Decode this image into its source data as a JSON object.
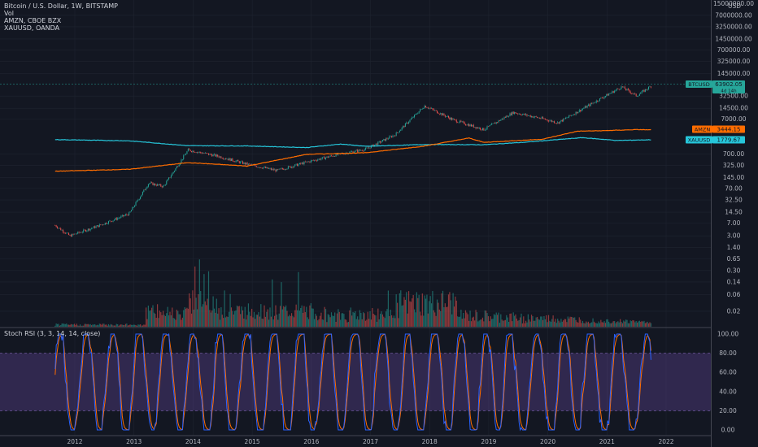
{
  "legend": {
    "main": "Bitcoin / U.S. Dollar, 1W, BITSTAMP",
    "volume": "Vol",
    "compare1": "AMZN, CBOE BZX",
    "compare2": "XAUUSD, OANDA"
  },
  "price_axis": {
    "currency": "USD",
    "labels": [
      "15000000.00",
      "7000000.00",
      "3250000.00",
      "1450000.00",
      "700000.00",
      "325000.00",
      "145000.00",
      "32500.00",
      "14500.00",
      "7000.00",
      "700.00",
      "325.00",
      "145.00",
      "70.00",
      "32.50",
      "14.50",
      "7.00",
      "3.00",
      "1.40",
      "0.65",
      "0.30",
      "0.14",
      "0.06",
      "0.02"
    ]
  },
  "badges": {
    "btc": {
      "name": "BTCUSD",
      "value": "63902.05",
      "sub": "4d 14h",
      "color": "#26a69a"
    },
    "amzn": {
      "name": "AMZN",
      "value": "3444.15",
      "color": "#ff6d00"
    },
    "xau": {
      "name": "XAUUSD",
      "value": "1779.67",
      "color": "#26c6da"
    }
  },
  "rsi": {
    "title": "Stoch RSI (3, 3, 14, 14, close)",
    "labels": [
      "100.00",
      "80.00",
      "60.00",
      "40.00",
      "20.00",
      "0.00"
    ],
    "k_color": "#2962ff",
    "d_color": "#ff6d00",
    "band_color": "#7e57c2"
  },
  "time_axis": {
    "labels": [
      "2012",
      "2013",
      "2014",
      "2015",
      "2016",
      "2017",
      "2018",
      "2019",
      "2020",
      "2021",
      "2022"
    ]
  },
  "chart_data": {
    "type": "line",
    "series": [
      {
        "name": "BTCUSD",
        "unit": "USD",
        "color": "#26a69a",
        "x": [
          "2011-09",
          "2011-12",
          "2012-06",
          "2012-12",
          "2013-04",
          "2013-07",
          "2013-12",
          "2014-06",
          "2014-12",
          "2015-06",
          "2015-12",
          "2016-06",
          "2016-12",
          "2017-06",
          "2017-12",
          "2018-06",
          "2018-12",
          "2019-06",
          "2019-12",
          "2020-03",
          "2020-06",
          "2020-12",
          "2021-04",
          "2021-07",
          "2021-10"
        ],
        "y": [
          6,
          3,
          6,
          13,
          100,
          80,
          900,
          600,
          350,
          230,
          400,
          650,
          950,
          2500,
          17000,
          6500,
          3500,
          11000,
          7200,
          5500,
          9500,
          29000,
          60000,
          33000,
          63902
        ]
      },
      {
        "name": "AMZN",
        "unit": "USD",
        "color": "#ff6d00",
        "x": [
          "2011-09",
          "2012-12",
          "2013-12",
          "2014-12",
          "2015-12",
          "2016-12",
          "2017-12",
          "2018-09",
          "2018-12",
          "2019-12",
          "2020-07",
          "2020-12",
          "2021-07",
          "2021-10"
        ],
        "y": [
          220,
          250,
          390,
          310,
          675,
          750,
          1170,
          2000,
          1500,
          1850,
          3150,
          3250,
          3500,
          3444.15
        ]
      },
      {
        "name": "XAUUSD",
        "unit": "USD",
        "color": "#26c6da",
        "x": [
          "2011-09",
          "2012-12",
          "2013-12",
          "2014-12",
          "2015-12",
          "2016-07",
          "2016-12",
          "2017-12",
          "2018-12",
          "2019-08",
          "2020-08",
          "2021-03",
          "2021-10"
        ],
        "y": [
          1800,
          1660,
          1200,
          1180,
          1060,
          1340,
          1150,
          1300,
          1280,
          1500,
          2050,
          1700,
          1779.67
        ]
      }
    ],
    "volume": {
      "label": "Vol"
    },
    "oscillator": {
      "name": "Stoch RSI (3, 3, 14, 14, close)",
      "ylim": [
        0,
        100
      ],
      "band": [
        20,
        80
      ]
    },
    "y_scale": "log",
    "xlim": [
      "2011-08",
      "2022-06"
    ]
  }
}
